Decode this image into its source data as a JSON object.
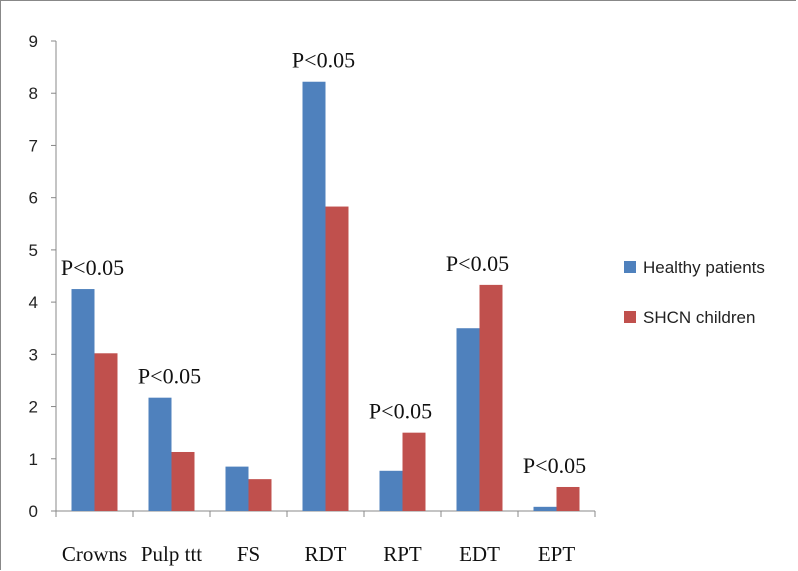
{
  "chart_data": {
    "type": "bar",
    "categories": [
      "Crowns",
      "Pulp ttt",
      "FS",
      "RDT",
      "RPT",
      "EDT",
      "EPT"
    ],
    "series": [
      {
        "name": "Healthy patients",
        "color": "#4f81bd",
        "values": [
          4.25,
          2.17,
          0.85,
          8.22,
          0.77,
          3.5,
          0.08
        ]
      },
      {
        "name": "SHCN children",
        "color": "#c0504d",
        "values": [
          3.02,
          1.13,
          0.61,
          5.83,
          1.5,
          4.33,
          0.46
        ]
      }
    ],
    "annotations": [
      "P<0.05",
      "P<0.05",
      "",
      "P<0.05",
      "P<0.05",
      "P<0.05",
      "P<0.05"
    ],
    "ylim": [
      0,
      9
    ],
    "yticks": [
      0,
      1,
      2,
      3,
      4,
      5,
      6,
      7,
      8,
      9
    ],
    "grid": false,
    "legend_position": "right"
  }
}
